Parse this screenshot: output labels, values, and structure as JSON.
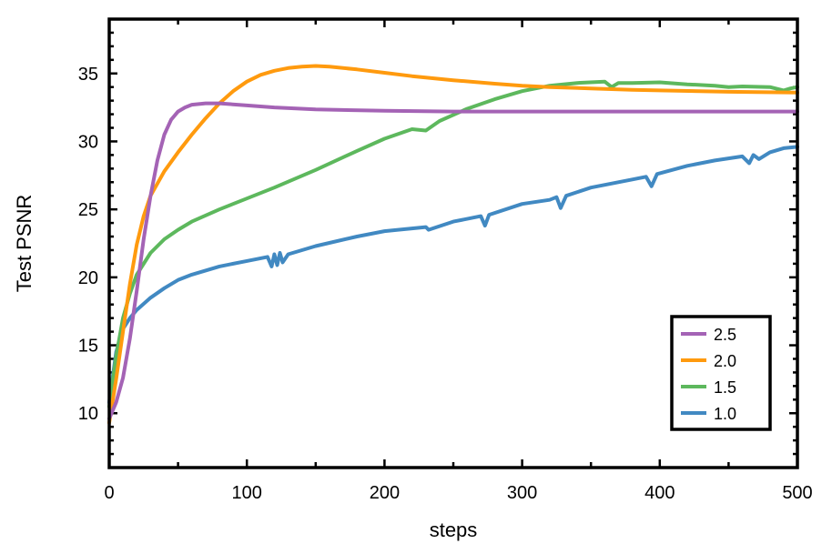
{
  "chart_data": {
    "type": "line",
    "title": "",
    "xlabel": "steps",
    "ylabel": "Test PSNR",
    "xlim": [
      0,
      500
    ],
    "ylim": [
      6,
      39
    ],
    "x_ticks": [
      0,
      100,
      200,
      300,
      400,
      500
    ],
    "y_ticks": [
      10,
      15,
      20,
      25,
      30,
      35
    ],
    "grid": false,
    "legend_position": "lower-right",
    "series": [
      {
        "name": "2.5",
        "color": "#a463b5",
        "x": [
          0,
          5,
          10,
          15,
          20,
          25,
          30,
          35,
          40,
          45,
          50,
          55,
          60,
          70,
          80,
          100,
          120,
          150,
          200,
          250,
          300,
          350,
          400,
          450,
          500
        ],
        "y": [
          9.6,
          10.8,
          12.6,
          15.5,
          19.0,
          22.8,
          26.0,
          28.6,
          30.5,
          31.6,
          32.2,
          32.5,
          32.7,
          32.8,
          32.8,
          32.65,
          32.5,
          32.35,
          32.25,
          32.2,
          32.2,
          32.2,
          32.2,
          32.2,
          32.2
        ]
      },
      {
        "name": "2.0",
        "color": "#ff9a0e",
        "x": [
          0,
          5,
          10,
          15,
          20,
          25,
          30,
          40,
          50,
          60,
          70,
          80,
          90,
          100,
          110,
          120,
          130,
          140,
          150,
          160,
          180,
          200,
          220,
          250,
          280,
          300,
          320,
          350,
          380,
          400,
          450,
          500
        ],
        "y": [
          9.3,
          12.5,
          16.0,
          19.5,
          22.4,
          24.5,
          26.0,
          27.8,
          29.2,
          30.5,
          31.7,
          32.8,
          33.7,
          34.4,
          34.9,
          35.2,
          35.4,
          35.5,
          35.55,
          35.5,
          35.3,
          35.05,
          34.8,
          34.5,
          34.25,
          34.1,
          34.0,
          33.9,
          33.8,
          33.75,
          33.65,
          33.6
        ]
      },
      {
        "name": "1.5",
        "color": "#5db85d",
        "x": [
          0,
          5,
          10,
          15,
          20,
          30,
          40,
          50,
          60,
          80,
          100,
          120,
          150,
          180,
          200,
          220,
          230,
          240,
          260,
          280,
          300,
          320,
          340,
          360,
          365,
          370,
          380,
          400,
          420,
          440,
          450,
          460,
          480,
          490,
          495,
          500
        ],
        "y": [
          10.5,
          14.2,
          17.0,
          18.8,
          20.2,
          21.8,
          22.8,
          23.5,
          24.1,
          25.0,
          25.8,
          26.6,
          27.9,
          29.3,
          30.2,
          30.9,
          30.8,
          31.5,
          32.4,
          33.1,
          33.7,
          34.1,
          34.3,
          34.4,
          34.0,
          34.3,
          34.3,
          34.35,
          34.2,
          34.1,
          34.0,
          34.05,
          34.0,
          33.75,
          33.9,
          34.0
        ]
      },
      {
        "name": "1.0",
        "color": "#4189c2",
        "x": [
          0,
          5,
          10,
          15,
          20,
          30,
          40,
          50,
          60,
          80,
          100,
          115,
          118,
          120,
          122,
          124,
          126,
          130,
          150,
          180,
          200,
          220,
          230,
          232,
          250,
          270,
          273,
          276,
          300,
          320,
          325,
          328,
          332,
          350,
          380,
          390,
          394,
          398,
          420,
          440,
          460,
          465,
          468,
          472,
          480,
          490,
          500
        ],
        "y": [
          10.8,
          14.5,
          16.2,
          17.0,
          17.6,
          18.5,
          19.2,
          19.8,
          20.2,
          20.8,
          21.2,
          21.5,
          20.8,
          21.7,
          20.9,
          21.8,
          21.1,
          21.7,
          22.3,
          23.0,
          23.4,
          23.6,
          23.7,
          23.5,
          24.1,
          24.5,
          23.8,
          24.6,
          25.4,
          25.7,
          25.9,
          25.1,
          26.0,
          26.6,
          27.2,
          27.4,
          26.7,
          27.6,
          28.2,
          28.6,
          28.9,
          28.4,
          29.0,
          28.7,
          29.2,
          29.5,
          29.6
        ]
      }
    ]
  }
}
